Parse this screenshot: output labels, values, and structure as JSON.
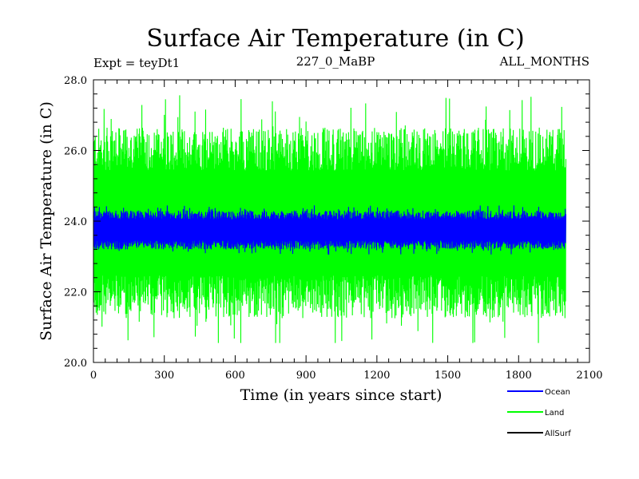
{
  "chart_data": {
    "type": "line",
    "title": "Surface Air Temperature (in C)",
    "experiment_label": "Expt = teyDt1",
    "period_label": "227_0_MaBP",
    "months_label": "ALL_MONTHS",
    "xlabel": "Time (in years since start)",
    "ylabel": "Surface Air Temperature (in C)",
    "xlim": [
      0,
      2100
    ],
    "ylim": [
      20.0,
      28.0
    ],
    "x_ticks": [
      0,
      300,
      600,
      900,
      1200,
      1500,
      1800,
      2100
    ],
    "x_tick_labels": [
      "0",
      "300",
      "600",
      "900",
      "1200",
      "1500",
      "1800",
      "2100"
    ],
    "y_ticks": [
      20.0,
      22.0,
      24.0,
      26.0,
      28.0
    ],
    "y_tick_labels": [
      "20.0",
      "22.0",
      "24.0",
      "26.0",
      "28.0"
    ],
    "legend_position": "bottom-right outside",
    "series": [
      {
        "name": "Ocean",
        "color": "#0000ff",
        "x_range": [
          0,
          2000
        ],
        "mean": 23.75,
        "typical_range": [
          23.2,
          24.3
        ],
        "extremes": [
          23.0,
          24.45
        ]
      },
      {
        "name": "Land",
        "color": "#00ff00",
        "x_range": [
          0,
          2000
        ],
        "mean": 23.95,
        "typical_range": [
          21.3,
          26.7
        ],
        "extremes": [
          20.55,
          27.65
        ]
      },
      {
        "name": "AllSurf",
        "color": "#000000",
        "x_range": [
          0,
          2000
        ],
        "mean": null,
        "typical_range": null,
        "extremes": null
      }
    ]
  }
}
